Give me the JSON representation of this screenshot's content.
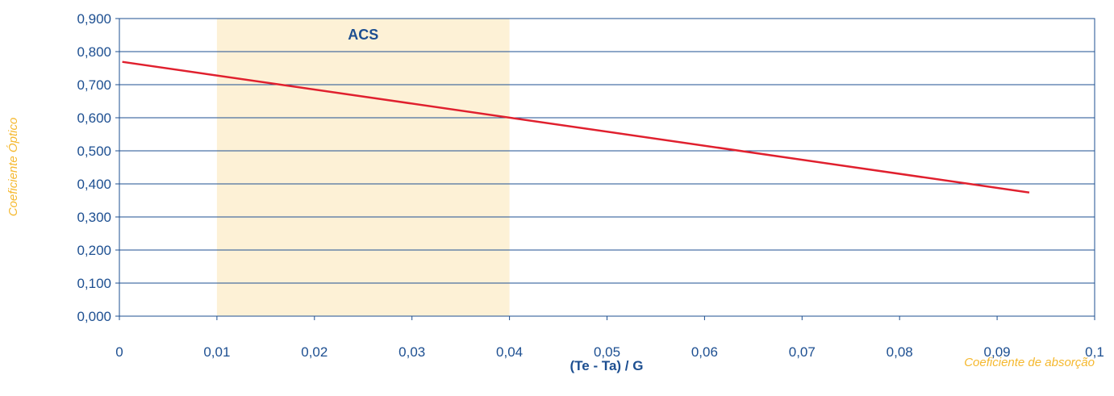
{
  "chart_data": {
    "type": "line",
    "title": "",
    "xlabel": "(Te - Ta) / G",
    "ylabel": "Coeficiente Óptico",
    "annotation_right": "Coeficiente de absorção",
    "xlim": [
      0,
      0.1
    ],
    "ylim": [
      0,
      0.9
    ],
    "x_ticks": [
      "0",
      "0,01",
      "0,02",
      "0,03",
      "0,04",
      "0,05",
      "0,06",
      "0,07",
      "0,08",
      "0,09",
      "0,1"
    ],
    "y_ticks": [
      "0,000",
      "0,100",
      "0,200",
      "0,300",
      "0,400",
      "0,500",
      "0,600",
      "0,700",
      "0,800",
      "0,900"
    ],
    "grid": true,
    "band": {
      "label": "ACS",
      "x_start": 0.01,
      "x_end": 0.04
    },
    "series": [
      {
        "x": [
          0.0003,
          0.0933
        ],
        "y": [
          0.769,
          0.374
        ]
      }
    ],
    "colors": {
      "axis": "#1d4f91",
      "line": "#e0202e",
      "band": "#fdf1d6",
      "side_label": "#f5b82e"
    }
  }
}
